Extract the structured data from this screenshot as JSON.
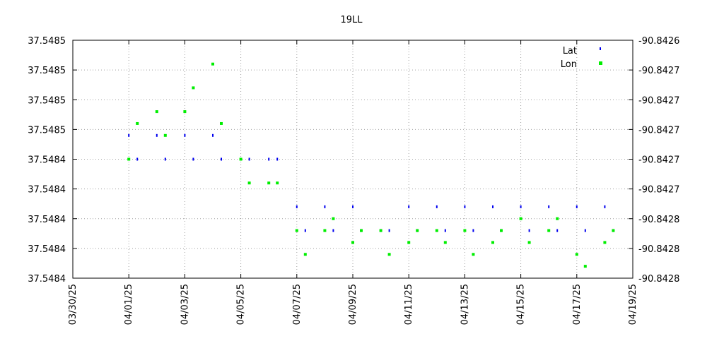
{
  "chart_data": {
    "type": "scatter",
    "title": "19LL",
    "xlabel": "",
    "ylabel": "",
    "x_tick_labels": [
      "03/30/25",
      "04/01/25",
      "04/03/25",
      "04/05/25",
      "04/07/25",
      "04/09/25",
      "04/11/25",
      "04/13/25",
      "04/15/25",
      "04/17/25",
      "04/19/25"
    ],
    "x_range": [
      "03/30/25",
      "04/19/25"
    ],
    "y_left_tick_labels": [
      "37.5485",
      "37.5485",
      "37.5485",
      "37.5485",
      "37.5484",
      "37.5484",
      "37.5484",
      "37.5484",
      "37.5484"
    ],
    "y_right_tick_labels": [
      "-90.8426",
      "-90.8427",
      "-90.8427",
      "-90.8427",
      "-90.8427",
      "-90.8427",
      "-90.8428",
      "-90.8428",
      "-90.8428"
    ],
    "grid": true,
    "legend_position": "top-right",
    "series": [
      {
        "name": "Lat",
        "axis": "left",
        "color": "#0000ee",
        "marker": "small vertical dash",
        "points": [
          [
            "04/01/25",
            37.54846
          ],
          [
            "04/01/25",
            37.54845
          ],
          [
            "04/02/25",
            37.54846
          ],
          [
            "04/02/25",
            37.54845
          ],
          [
            "04/03/25",
            37.54846
          ],
          [
            "04/03/25",
            37.54845
          ],
          [
            "04/04/25",
            37.54846
          ],
          [
            "04/04/25",
            37.54845
          ],
          [
            "04/05/25",
            37.54845
          ],
          [
            "04/05/25",
            37.54845
          ],
          [
            "04/06/25",
            37.54845
          ],
          [
            "04/06/25",
            37.54845
          ],
          [
            "04/07/25",
            37.54843
          ],
          [
            "04/07/25",
            37.54842
          ],
          [
            "04/08/25",
            37.54843
          ],
          [
            "04/08/25",
            37.54842
          ],
          [
            "04/09/25",
            37.54843
          ],
          [
            "04/09/25",
            37.54842
          ],
          [
            "04/10/25",
            37.54842
          ],
          [
            "04/10/25",
            37.54842
          ],
          [
            "04/11/25",
            37.54843
          ],
          [
            "04/11/25",
            37.54842
          ],
          [
            "04/12/25",
            37.54843
          ],
          [
            "04/12/25",
            37.54842
          ],
          [
            "04/13/25",
            37.54843
          ],
          [
            "04/13/25",
            37.54842
          ],
          [
            "04/14/25",
            37.54843
          ],
          [
            "04/14/25",
            37.54842
          ],
          [
            "04/15/25",
            37.54843
          ],
          [
            "04/15/25",
            37.54842
          ],
          [
            "04/16/25",
            37.54843
          ],
          [
            "04/16/25",
            37.54842
          ],
          [
            "04/17/25",
            37.54843
          ],
          [
            "04/17/25",
            37.54842
          ],
          [
            "04/18/25",
            37.54843
          ],
          [
            "04/18/25",
            37.54842
          ]
        ]
      },
      {
        "name": "Lon",
        "axis": "right",
        "color": "#00ee00",
        "marker": "small square",
        "points": [
          [
            "04/01/25",
            -90.8427
          ],
          [
            "04/01/25",
            -90.84267
          ],
          [
            "04/02/25",
            -90.84266
          ],
          [
            "04/02/25",
            -90.84268
          ],
          [
            "04/03/25",
            -90.84266
          ],
          [
            "04/03/25",
            -90.84264
          ],
          [
            "04/04/25",
            -90.84262
          ],
          [
            "04/04/25",
            -90.84267
          ],
          [
            "04/05/25",
            -90.8427
          ],
          [
            "04/05/25",
            -90.84272
          ],
          [
            "04/06/25",
            -90.84272
          ],
          [
            "04/06/25",
            -90.84272
          ],
          [
            "04/07/25",
            -90.84276
          ],
          [
            "04/07/25",
            -90.84278
          ],
          [
            "04/08/25",
            -90.84276
          ],
          [
            "04/08/25",
            -90.84275
          ],
          [
            "04/09/25",
            -90.84277
          ],
          [
            "04/09/25",
            -90.84276
          ],
          [
            "04/10/25",
            -90.84276
          ],
          [
            "04/10/25",
            -90.84278
          ],
          [
            "04/11/25",
            -90.84277
          ],
          [
            "04/11/25",
            -90.84276
          ],
          [
            "04/12/25",
            -90.84276
          ],
          [
            "04/12/25",
            -90.84277
          ],
          [
            "04/13/25",
            -90.84276
          ],
          [
            "04/13/25",
            -90.84278
          ],
          [
            "04/14/25",
            -90.84277
          ],
          [
            "04/14/25",
            -90.84276
          ],
          [
            "04/15/25",
            -90.84275
          ],
          [
            "04/15/25",
            -90.84277
          ],
          [
            "04/16/25",
            -90.84276
          ],
          [
            "04/16/25",
            -90.84275
          ],
          [
            "04/17/25",
            -90.84278
          ],
          [
            "04/17/25",
            -90.84279
          ],
          [
            "04/18/25",
            -90.84277
          ],
          [
            "04/18/25",
            -90.84276
          ]
        ]
      }
    ]
  }
}
